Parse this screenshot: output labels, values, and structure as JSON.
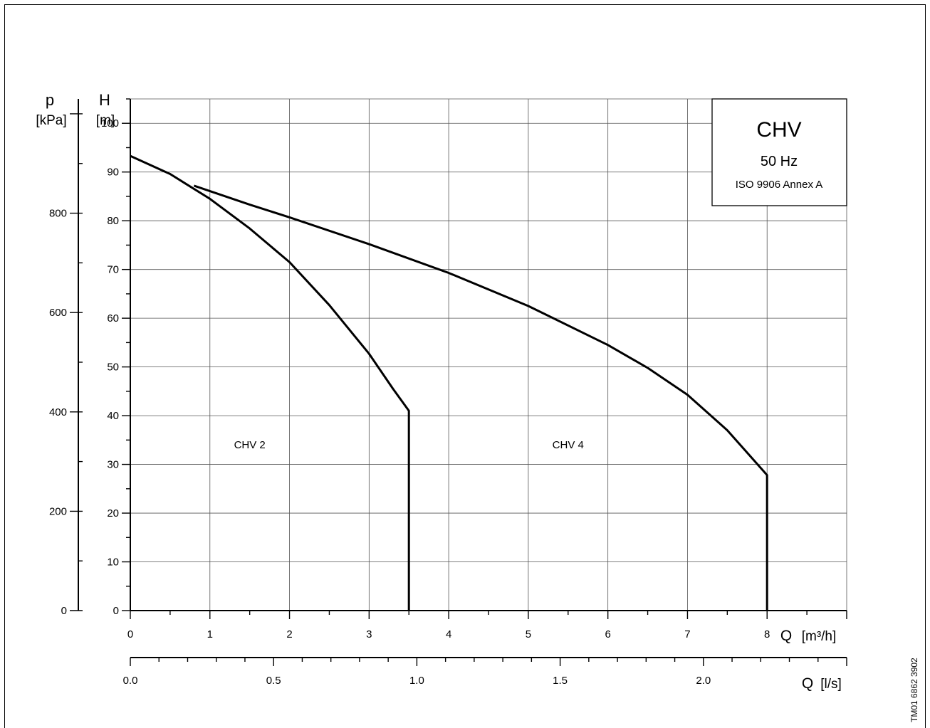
{
  "document_code": "TM01 6862 3902",
  "chart_data": {
    "type": "line",
    "title_box": {
      "title": "CHV",
      "frequency": "50 Hz",
      "standard": "ISO 9906 Annex A"
    },
    "x_axis": {
      "symbol": "Q",
      "unit": "[m³/h]",
      "range": [
        0,
        9
      ],
      "major_ticks": [
        0,
        1,
        2,
        3,
        4,
        5,
        6,
        7,
        8
      ],
      "minor_step": 0.5
    },
    "x2_axis": {
      "symbol": "Q",
      "unit": "[l/s]",
      "range": [
        0,
        2.5
      ],
      "major_ticks": [
        "0.0",
        "0.5",
        "1.0",
        "1.5",
        "2.0"
      ],
      "minor_step": 0.1
    },
    "y_axis": {
      "symbol": "H",
      "unit": "[m]",
      "range": [
        0,
        105
      ],
      "major_ticks": [
        0,
        10,
        20,
        30,
        40,
        50,
        60,
        70,
        80,
        90,
        100
      ],
      "minor_step": 5
    },
    "y2_axis": {
      "symbol": "p",
      "unit": "[kPa]",
      "range": [
        0,
        1030
      ],
      "major_ticks": [
        0,
        200,
        400,
        600,
        800
      ],
      "minor_step": 100
    },
    "grid": true,
    "series": [
      {
        "name": "CHV 2",
        "label_at": [
          1.5,
          34
        ],
        "points": [
          [
            0,
            93.3
          ],
          [
            0.5,
            89.6
          ],
          [
            1.0,
            84.5
          ],
          [
            1.5,
            78.4
          ],
          [
            2.0,
            71.5
          ],
          [
            2.5,
            62.7
          ],
          [
            3.0,
            52.7
          ],
          [
            3.3,
            45.5
          ],
          [
            3.5,
            41.0
          ],
          [
            3.5,
            0
          ]
        ]
      },
      {
        "name": "CHV 4",
        "label_at": [
          5.5,
          34
        ],
        "points": [
          [
            0.8,
            87.2
          ],
          [
            1.5,
            83.3
          ],
          [
            2.0,
            80.7
          ],
          [
            3.0,
            75.2
          ],
          [
            4.0,
            69.3
          ],
          [
            5.0,
            62.5
          ],
          [
            6.0,
            54.5
          ],
          [
            6.5,
            49.8
          ],
          [
            7.0,
            44.3
          ],
          [
            7.5,
            37.0
          ],
          [
            8.0,
            27.8
          ],
          [
            8.0,
            0
          ]
        ]
      }
    ]
  }
}
